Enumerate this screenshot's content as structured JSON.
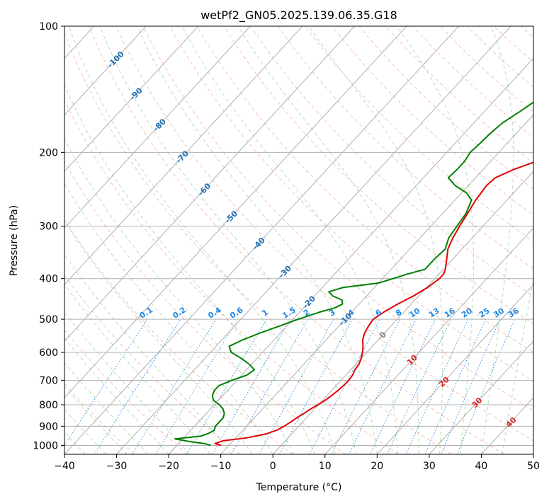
{
  "chart_data": {
    "type": "line",
    "title": "wetPf2_GN05.2025.139.06.35.G18",
    "xlabel": "Temperature (°C)",
    "ylabel": "Pressure (hPa)",
    "xlim": [
      -40,
      50
    ],
    "ylim": [
      1050,
      100
    ],
    "y_scale": "log",
    "grid": true,
    "x_ticks": [
      -40,
      -30,
      -20,
      -10,
      0,
      10,
      20,
      30,
      40,
      50
    ],
    "y_ticks": [
      100,
      200,
      300,
      400,
      500,
      600,
      700,
      800,
      900,
      1000
    ],
    "isotherm_labels": [
      "-100",
      "-90",
      "-80",
      "-70",
      "-60",
      "-50",
      "-40",
      "-30",
      "-20",
      "-10",
      "0",
      "10",
      "20",
      "30",
      "40"
    ],
    "isotherm_values": [
      -100,
      -90,
      -80,
      -70,
      -60,
      -50,
      -40,
      -30,
      -20,
      -10,
      0,
      10,
      20,
      30,
      40
    ],
    "mixing_ratio_labels": [
      "0.1",
      "0.2",
      "0.4",
      "0.6",
      "1",
      "1.5",
      "2",
      "3",
      "4",
      "6",
      "8",
      "10",
      "13",
      "16",
      "20",
      "25",
      "30",
      "36"
    ],
    "mixing_ratio_values": [
      0.1,
      0.2,
      0.4,
      0.6,
      1,
      1.5,
      2,
      3,
      4,
      6,
      8,
      10,
      13,
      16,
      20,
      25,
      30,
      36
    ],
    "mixing_ratio_label_pressure": 500,
    "colors": {
      "temperature": "#e00000",
      "dewpoint": "#008000",
      "isotherm_cold": "#1f6fb4",
      "isotherm_zero": "#808080",
      "isotherm_warm": "#d62728",
      "mixing_ratio": "#1e88e5",
      "dry_adiabat": "#fa8072",
      "moist_adiabat": "#7fbf7f",
      "grid": "#b0b0b0"
    },
    "series": [
      {
        "name": "Temperature",
        "pressure": [
          1000,
          990,
          975,
          960,
          940,
          920,
          900,
          880,
          860,
          840,
          820,
          800,
          780,
          760,
          740,
          720,
          700,
          680,
          660,
          640,
          620,
          600,
          580,
          560,
          540,
          520,
          500,
          480,
          460,
          440,
          420,
          400,
          390,
          380,
          360,
          340,
          320,
          300,
          280,
          260,
          240,
          230,
          220,
          210,
          200,
          190,
          180,
          170,
          160,
          150,
          140,
          130,
          120,
          110,
          100
        ],
        "values": [
          -11.5,
          -13,
          -12,
          -8,
          -5,
          -3.5,
          -2.8,
          -2.3,
          -1.9,
          -1.3,
          -0.8,
          -0.1,
          0.5,
          0.9,
          1.2,
          1.4,
          1.5,
          1.3,
          0.8,
          0.6,
          0,
          -0.8,
          -1.8,
          -3,
          -3.8,
          -4.3,
          -4.6,
          -3.8,
          -2.6,
          -1,
          0.2,
          0.9,
          0.9,
          0.4,
          -1.1,
          -2.7,
          -3.7,
          -4.5,
          -5.2,
          -6,
          -6.5,
          -6.2,
          -4.2,
          -1.2,
          2.5,
          5.5,
          8.5,
          10.5,
          12,
          14.5,
          17.5,
          20,
          21.5,
          22.2,
          25.5
        ]
      },
      {
        "name": "Dewpoint",
        "pressure": [
          1000,
          990,
          980,
          965,
          950,
          935,
          920,
          900,
          880,
          860,
          840,
          820,
          800,
          780,
          760,
          740,
          720,
          700,
          680,
          660,
          640,
          620,
          600,
          580,
          560,
          540,
          520,
          500,
          480,
          470,
          460,
          450,
          440,
          430,
          420,
          410,
          400,
          390,
          380,
          360,
          340,
          320,
          300,
          280,
          260,
          250,
          240,
          230,
          220,
          210,
          200,
          190,
          180,
          170,
          160,
          150,
          140,
          130,
          120,
          110,
          100
        ],
        "values": [
          -13.5,
          -15,
          -18,
          -21.5,
          -17,
          -16,
          -15.5,
          -16,
          -16,
          -16,
          -16.5,
          -17.5,
          -19,
          -21,
          -22,
          -22.5,
          -22.5,
          -21,
          -19,
          -18.5,
          -20.5,
          -23,
          -26,
          -27.5,
          -26,
          -24,
          -21.5,
          -19,
          -16,
          -14,
          -13.2,
          -14,
          -16.5,
          -18,
          -16,
          -10,
          -8,
          -6,
          -3.5,
          -3.5,
          -3.2,
          -4.5,
          -5,
          -5.5,
          -6.8,
          -9,
          -12.5,
          -15.2,
          -15,
          -15,
          -15.5,
          -15.2,
          -15,
          -14.5,
          -13.2,
          -12,
          -10,
          -8,
          -4,
          -0.8,
          1.5
        ]
      }
    ]
  }
}
